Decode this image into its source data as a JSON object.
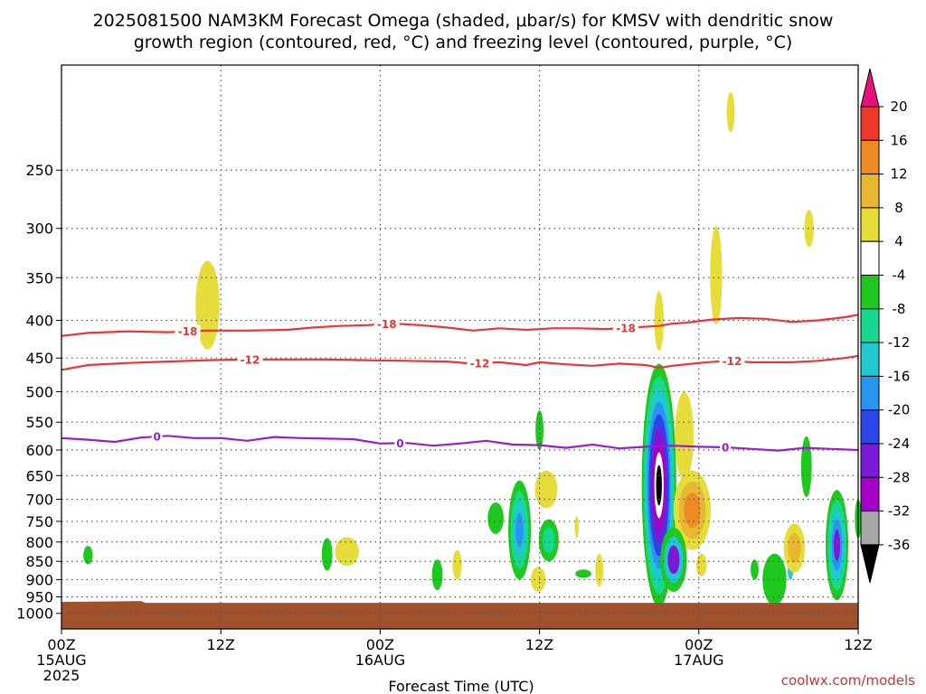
{
  "chart_data": {
    "type": "heatmap",
    "title_line1": "2025081500 NAM3KM Forecast Omega (shaded, μbar/s) for KMSV with dendritic snow",
    "title_line2": "growth region (contoured, red, °C) and freezing level (contoured, purple, °C)",
    "xlabel": "Forecast Time (UTC)",
    "ylabel": "",
    "x_range_hours": [
      0,
      60
    ],
    "y_range_hpa": [
      180,
      1050
    ],
    "y_scale": "log-pressure",
    "grid": "dotted",
    "x_ticks": [
      {
        "h": 0,
        "l1": "00Z",
        "l2": "15AUG",
        "l3": "2025"
      },
      {
        "h": 12,
        "l1": "12Z",
        "l2": "",
        "l3": ""
      },
      {
        "h": 24,
        "l1": "00Z",
        "l2": "16AUG",
        "l3": ""
      },
      {
        "h": 36,
        "l1": "12Z",
        "l2": "",
        "l3": ""
      },
      {
        "h": 48,
        "l1": "00Z",
        "l2": "17AUG",
        "l3": ""
      },
      {
        "h": 60,
        "l1": "12Z",
        "l2": "",
        "l3": ""
      }
    ],
    "y_ticks": [
      250,
      300,
      350,
      400,
      450,
      500,
      550,
      600,
      650,
      700,
      750,
      800,
      850,
      900,
      950,
      1000
    ],
    "colorbar": {
      "levels": [
        "20",
        "16",
        "12",
        "8",
        "4",
        "-4",
        "-8",
        "-12",
        "-16",
        "-20",
        "-24",
        "-28",
        "-32",
        "-36"
      ],
      "colors": [
        "#e8107a",
        "#ee3a2a",
        "#ee8a22",
        "#e8b830",
        "#e6dc3a",
        "#ffffff",
        "#1ec81e",
        "#18d890",
        "#20c8d0",
        "#2896ee",
        "#2a46e8",
        "#7a1ad8",
        "#a400c8",
        "#a8a8a8",
        "#000000"
      ]
    },
    "contours": [
      {
        "label": "-18",
        "color": "#ee3333",
        "label_hours": [
          9.5,
          24.5,
          42.5
        ],
        "points": [
          [
            0,
            420
          ],
          [
            2,
            416
          ],
          [
            5,
            414
          ],
          [
            8,
            415
          ],
          [
            11,
            413
          ],
          [
            14,
            413
          ],
          [
            17,
            412
          ],
          [
            19,
            409
          ],
          [
            21,
            407
          ],
          [
            23,
            406
          ],
          [
            25,
            404
          ],
          [
            27,
            406
          ],
          [
            29,
            409
          ],
          [
            31,
            413
          ],
          [
            33,
            410
          ],
          [
            35,
            412
          ],
          [
            37,
            410
          ],
          [
            39,
            410
          ],
          [
            41,
            411
          ],
          [
            43,
            409
          ],
          [
            45,
            407
          ],
          [
            46,
            404
          ],
          [
            47,
            403
          ],
          [
            48,
            401
          ],
          [
            49,
            399
          ],
          [
            51,
            397
          ],
          [
            53,
            398
          ],
          [
            55,
            402
          ],
          [
            57,
            400
          ],
          [
            59,
            396
          ],
          [
            60,
            393
          ]
        ]
      },
      {
        "label": "-12",
        "color": "#ee3333",
        "label_hours": [
          14.2,
          31.5,
          50.5
        ],
        "points": [
          [
            0,
            467
          ],
          [
            2,
            460
          ],
          [
            5,
            457
          ],
          [
            8,
            455
          ],
          [
            11,
            453
          ],
          [
            14,
            452
          ],
          [
            17,
            452
          ],
          [
            20,
            452
          ],
          [
            23,
            453
          ],
          [
            26,
            454
          ],
          [
            29,
            455
          ],
          [
            31,
            458
          ],
          [
            33,
            456
          ],
          [
            35,
            460
          ],
          [
            36,
            456
          ],
          [
            38,
            459
          ],
          [
            40,
            461
          ],
          [
            42,
            458
          ],
          [
            44,
            460
          ],
          [
            45,
            464
          ],
          [
            46,
            461
          ],
          [
            48,
            457
          ],
          [
            50,
            454
          ],
          [
            52,
            456
          ],
          [
            55,
            456
          ],
          [
            57,
            454
          ],
          [
            59,
            450
          ],
          [
            60,
            447
          ]
        ]
      },
      {
        "label": "0",
        "color": "#9a1ad6",
        "label_hours": [
          7.2,
          25.5,
          50.0
        ],
        "points": [
          [
            0,
            578
          ],
          [
            2,
            581
          ],
          [
            4,
            585
          ],
          [
            6,
            577
          ],
          [
            8,
            574
          ],
          [
            10,
            578
          ],
          [
            12,
            578
          ],
          [
            14,
            583
          ],
          [
            16,
            576
          ],
          [
            18,
            578
          ],
          [
            20,
            579
          ],
          [
            22,
            580
          ],
          [
            24,
            588
          ],
          [
            26,
            587
          ],
          [
            28,
            592
          ],
          [
            30,
            588
          ],
          [
            32,
            583
          ],
          [
            34,
            590
          ],
          [
            36,
            591
          ],
          [
            38,
            596
          ],
          [
            40,
            590
          ],
          [
            42,
            597
          ],
          [
            44,
            594
          ],
          [
            46,
            592
          ],
          [
            48,
            594
          ],
          [
            50,
            595
          ],
          [
            52,
            598
          ],
          [
            54,
            601
          ],
          [
            56,
            596
          ],
          [
            58,
            598
          ],
          [
            60,
            600
          ]
        ]
      }
    ],
    "fields": [
      {
        "hour": 11.0,
        "p_top": 332,
        "p_bot": 438,
        "hw": 0.9,
        "levels": [
          "#e6dc3a"
        ]
      },
      {
        "hour": 50.4,
        "p_top": 196,
        "p_bot": 222,
        "hw": 0.3,
        "levels": [
          "#e6dc3a"
        ]
      },
      {
        "hour": 56.3,
        "p_top": 283,
        "p_bot": 318,
        "hw": 0.35,
        "levels": [
          "#e6dc3a"
        ]
      },
      {
        "hour": 49.3,
        "p_top": 298,
        "p_bot": 405,
        "hw": 0.45,
        "levels": [
          "#e6dc3a"
        ]
      },
      {
        "hour": 45.0,
        "p_top": 365,
        "p_bot": 440,
        "hw": 0.35,
        "levels": [
          "#e6dc3a"
        ]
      },
      {
        "hour": 2.0,
        "p_top": 810,
        "p_bot": 858,
        "hw": 0.35,
        "levels": [
          "#1ec81e"
        ]
      },
      {
        "hour": 20.0,
        "p_top": 790,
        "p_bot": 875,
        "hw": 0.4,
        "levels": [
          "#1ec81e"
        ]
      },
      {
        "hour": 21.5,
        "p_top": 788,
        "p_bot": 862,
        "hw": 0.9,
        "levels": [
          "#e6dc3a"
        ]
      },
      {
        "hour": 28.3,
        "p_top": 845,
        "p_bot": 930,
        "hw": 0.4,
        "levels": [
          "#1ec81e"
        ]
      },
      {
        "hour": 29.8,
        "p_top": 820,
        "p_bot": 900,
        "hw": 0.35,
        "levels": [
          "#e6dc3a"
        ]
      },
      {
        "hour": 32.7,
        "p_top": 707,
        "p_bot": 780,
        "hw": 0.6,
        "levels": [
          "#1ec81e"
        ]
      },
      {
        "hour": 34.5,
        "p_top": 660,
        "p_bot": 900,
        "hw": 0.85,
        "levels": [
          "#1ec81e",
          "#18d890",
          "#20c8d0",
          "#2896ee"
        ]
      },
      {
        "hour": 36.0,
        "p_top": 530,
        "p_bot": 600,
        "hw": 0.3,
        "levels": [
          "#1ec81e"
        ]
      },
      {
        "hour": 36.5,
        "p_top": 640,
        "p_bot": 720,
        "hw": 0.85,
        "levels": [
          "#e6dc3a"
        ]
      },
      {
        "hour": 36.7,
        "p_top": 745,
        "p_bot": 850,
        "hw": 0.75,
        "levels": [
          "#1ec81e",
          "#18d890"
        ]
      },
      {
        "hour": 35.9,
        "p_top": 865,
        "p_bot": 935,
        "hw": 0.55,
        "levels": [
          "#e6dc3a"
        ]
      },
      {
        "hour": 38.8,
        "p_top": 738,
        "p_bot": 790,
        "hw": 0.15,
        "levels": [
          "#e6dc3a"
        ]
      },
      {
        "hour": 39.3,
        "p_top": 872,
        "p_bot": 895,
        "hw": 0.6,
        "levels": [
          "#1ec81e"
        ]
      },
      {
        "hour": 40.5,
        "p_top": 830,
        "p_bot": 920,
        "hw": 0.3,
        "levels": [
          "#e6dc3a"
        ]
      },
      {
        "hour": 45.0,
        "p_top": 458,
        "p_bot": 980,
        "hw": 1.3,
        "levels": [
          "#1ec81e",
          "#18d890",
          "#20c8d0",
          "#2896ee",
          "#2a46e8",
          "#7a1ad8",
          "#a400c8",
          "#ffffff",
          "#000000"
        ]
      },
      {
        "hour": 46.9,
        "p_top": 500,
        "p_bot": 660,
        "hw": 0.7,
        "levels": [
          "#e6dc3a"
        ]
      },
      {
        "hour": 47.5,
        "p_top": 640,
        "p_bot": 820,
        "hw": 1.4,
        "levels": [
          "#e6dc3a",
          "#e8b830",
          "#ee8a22"
        ]
      },
      {
        "hour": 48.2,
        "p_top": 830,
        "p_bot": 890,
        "hw": 0.4,
        "levels": [
          "#e6dc3a"
        ]
      },
      {
        "hour": 46.1,
        "p_top": 765,
        "p_bot": 935,
        "hw": 1.0,
        "levels": [
          "#1ec81e",
          "#20c8d0",
          "#7a1ad8"
        ]
      },
      {
        "hour": 52.2,
        "p_top": 845,
        "p_bot": 900,
        "hw": 0.3,
        "levels": [
          "#1ec81e"
        ]
      },
      {
        "hour": 53.7,
        "p_top": 830,
        "p_bot": 975,
        "hw": 0.9,
        "levels": [
          "#1ec81e"
        ]
      },
      {
        "hour": 54.9,
        "p_top": 850,
        "p_bot": 900,
        "hw": 0.2,
        "levels": [
          "#20c8d0"
        ]
      },
      {
        "hour": 56.1,
        "p_top": 575,
        "p_bot": 695,
        "hw": 0.4,
        "levels": [
          "#1ec81e"
        ]
      },
      {
        "hour": 55.2,
        "p_top": 755,
        "p_bot": 880,
        "hw": 0.8,
        "levels": [
          "#e6dc3a",
          "#e8b830"
        ]
      },
      {
        "hour": 58.4,
        "p_top": 680,
        "p_bot": 960,
        "hw": 0.85,
        "levels": [
          "#1ec81e",
          "#18d890",
          "#20c8d0",
          "#2896ee",
          "#7a1ad8"
        ]
      },
      {
        "hour": 60.0,
        "p_top": 700,
        "p_bot": 790,
        "hw": 0.25,
        "levels": [
          "#1ec81e"
        ]
      }
    ],
    "ground": {
      "p_top": 965,
      "color": "#a0522d"
    }
  },
  "watermark": "coolwx.com/models"
}
